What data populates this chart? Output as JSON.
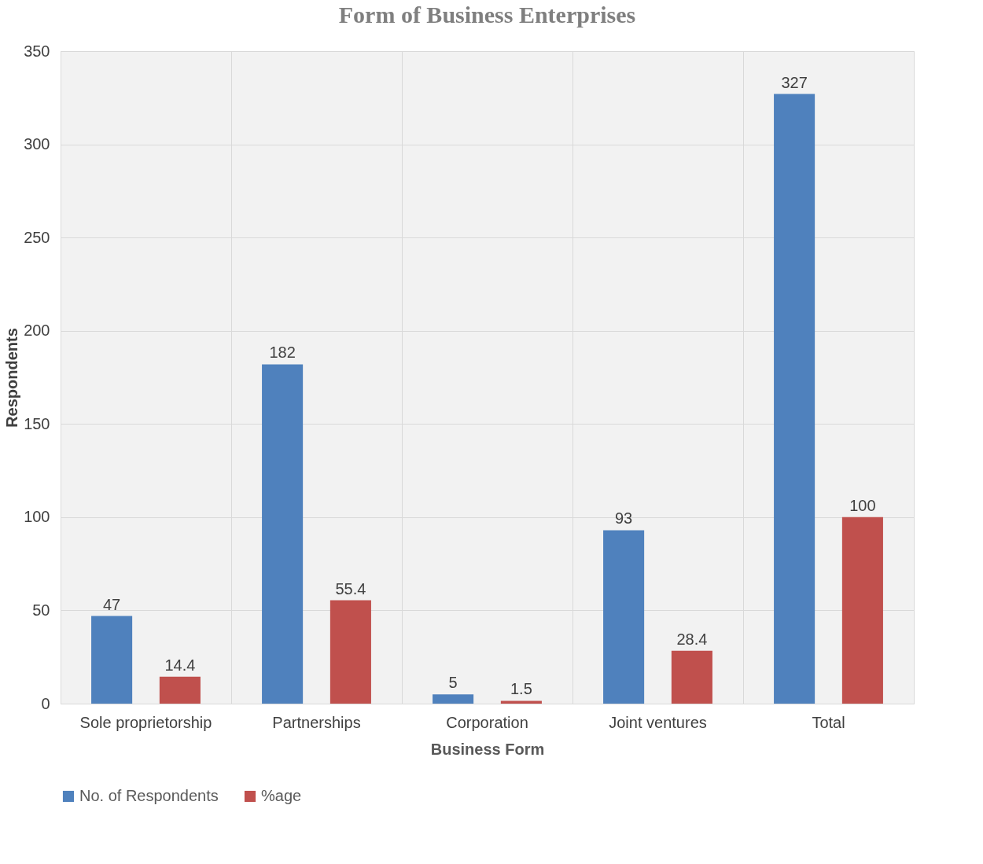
{
  "chart_data": {
    "type": "bar",
    "title": "Form of Business Enterprises",
    "xlabel": "Business Form",
    "ylabel": "Respondents",
    "categories": [
      "Sole proprietorship",
      "Partnerships",
      "Corporation",
      "Joint ventures",
      "Total"
    ],
    "series": [
      {
        "name": "No. of Respondents",
        "color": "#4f81bd",
        "values": [
          47,
          182,
          5,
          93,
          327
        ]
      },
      {
        "name": "%age",
        "color": "#c0504d",
        "values": [
          14.4,
          55.4,
          1.5,
          28.4,
          100
        ]
      }
    ],
    "ylim": [
      0,
      350
    ],
    "yticks": [
      0,
      50,
      100,
      150,
      200,
      250,
      300,
      350
    ],
    "grid": true,
    "legend": "bottom",
    "data_labels": true
  }
}
